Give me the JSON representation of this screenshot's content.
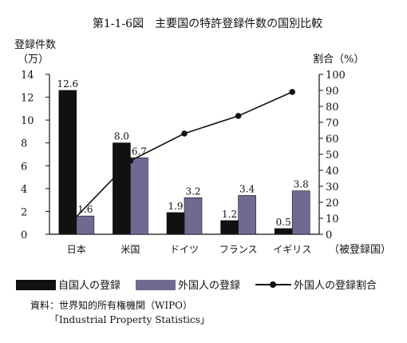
{
  "chart_data": {
    "type": "bar",
    "title": "第1-1-6図　主要国の特許登録件数の国別比較",
    "ylabel_left_line1": "登録件数",
    "ylabel_left_line2": "（万）",
    "ylabel_right": "割合（%）",
    "xlabel": "（被登録国）",
    "categories": [
      "日本",
      "米国",
      "ドイツ",
      "フランス",
      "イギリス"
    ],
    "ylim": [
      0,
      14
    ],
    "y_ticks": [
      "0",
      "2",
      "4",
      "6",
      "8",
      "10",
      "12",
      "14"
    ],
    "y2lim": [
      0,
      100
    ],
    "y2_ticks": [
      "0",
      "10",
      "20",
      "30",
      "40",
      "50",
      "60",
      "70",
      "80",
      "90",
      "100"
    ],
    "series": [
      {
        "name": "自国人の登録",
        "kind": "bar",
        "color": "#111111",
        "values": [
          12.6,
          8.0,
          1.9,
          1.2,
          0.5
        ],
        "labels": [
          "12.6",
          "8.0",
          "1.9",
          "1.2",
          "0.5"
        ]
      },
      {
        "name": "外国人の登録",
        "kind": "bar",
        "color": "#6f6a92",
        "values": [
          1.6,
          6.7,
          3.2,
          3.4,
          3.8
        ],
        "labels": [
          "1.6",
          "6.7",
          "3.2",
          "3.4",
          "3.8"
        ]
      },
      {
        "name": "外国人の登録割合",
        "kind": "line",
        "color": "#111111",
        "axis": "right",
        "values": [
          11,
          46,
          63,
          74,
          89
        ]
      }
    ],
    "grid": false,
    "legend_position": "bottom"
  },
  "source": {
    "line1": "資料：世界知的所有権機関（WIPO）",
    "line2": "「Industrial Property Statistics」"
  }
}
